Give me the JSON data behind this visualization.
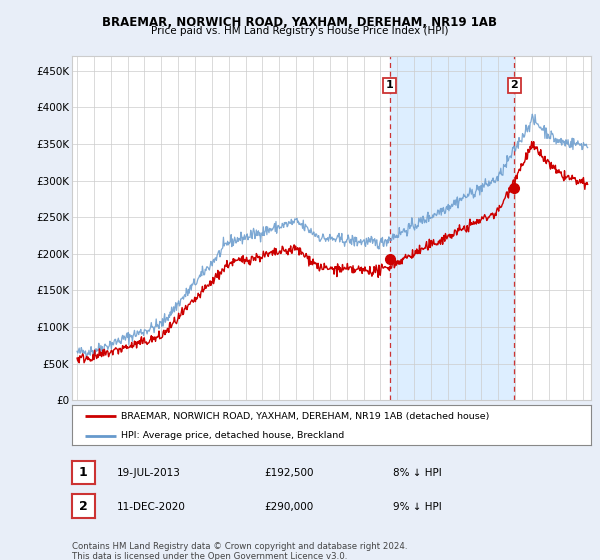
{
  "title": "BRAEMAR, NORWICH ROAD, YAXHAM, DEREHAM, NR19 1AB",
  "subtitle": "Price paid vs. HM Land Registry's House Price Index (HPI)",
  "ylabel_ticks": [
    "£0",
    "£50K",
    "£100K",
    "£150K",
    "£200K",
    "£250K",
    "£300K",
    "£350K",
    "£400K",
    "£450K"
  ],
  "ytick_values": [
    0,
    50000,
    100000,
    150000,
    200000,
    250000,
    300000,
    350000,
    400000,
    450000
  ],
  "ylim": [
    0,
    470000
  ],
  "xlim_start": 1994.7,
  "xlim_end": 2025.5,
  "sale1_x": 2013.55,
  "sale1_y": 192500,
  "sale1_label": "1",
  "sale2_x": 2020.95,
  "sale2_y": 290000,
  "sale2_label": "2",
  "legend_line1": "BRAEMAR, NORWICH ROAD, YAXHAM, DEREHAM, NR19 1AB (detached house)",
  "legend_line2": "HPI: Average price, detached house, Breckland",
  "table_row1": [
    "1",
    "19-JUL-2013",
    "£192,500",
    "8% ↓ HPI"
  ],
  "table_row2": [
    "2",
    "11-DEC-2020",
    "£290,000",
    "9% ↓ HPI"
  ],
  "footnote": "Contains HM Land Registry data © Crown copyright and database right 2024.\nThis data is licensed under the Open Government Licence v3.0.",
  "red_color": "#cc0000",
  "blue_color": "#6699cc",
  "shade_color": "#ddeeff",
  "vline_color": "#cc3333",
  "background_color": "#e8eef8",
  "plot_bg_color": "#ffffff",
  "grid_color": "#cccccc"
}
